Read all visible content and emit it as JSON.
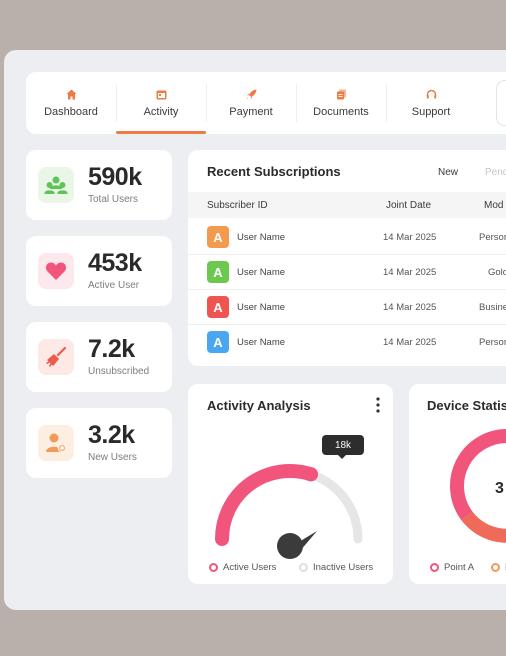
{
  "nav": {
    "tabs": [
      {
        "label": "Dashboard",
        "icon": "home-icon"
      },
      {
        "label": "Activity",
        "icon": "calendar-icon"
      },
      {
        "label": "Payment",
        "icon": "rocket-icon"
      },
      {
        "label": "Documents",
        "icon": "documents-icon"
      },
      {
        "label": "Support",
        "icon": "headset-icon"
      }
    ],
    "active_tab": "Activity",
    "notification_icon": "bell-icon"
  },
  "stats": [
    {
      "value": "590k",
      "label": "Total Users",
      "icon": "users-group-icon",
      "color": "#5fc35a",
      "bg": "#eaf6e6"
    },
    {
      "value": "453k",
      "label": "Active User",
      "icon": "heart-icon",
      "color": "#f2557c",
      "bg": "#fde8ee"
    },
    {
      "value": "7.2k",
      "label": "Unsubscribed",
      "icon": "broom-icon",
      "color": "#ef5a4c",
      "bg": "#fde9e6"
    },
    {
      "value": "3.2k",
      "label": "New Users",
      "icon": "add-user-icon",
      "color": "#f29a5c",
      "bg": "#fdeee2"
    }
  ],
  "subscriptions": {
    "title": "Recent Subscriptions",
    "filters": {
      "new": "New",
      "pending": "Pend"
    },
    "columns": {
      "id": "Subscriber ID",
      "date": "Joint Date",
      "mode": "Mod"
    },
    "rows": [
      {
        "avatar": "A",
        "color": "#f49a4c",
        "name": "User Name",
        "date": "14 Mar 2025",
        "mode": "Persor"
      },
      {
        "avatar": "A",
        "color": "#6cc84e",
        "name": "User Name",
        "date": "14 Mar 2025",
        "mode": "Gold"
      },
      {
        "avatar": "A",
        "color": "#ef5451",
        "name": "User Name",
        "date": "14 Mar 2025",
        "mode": "Busine"
      },
      {
        "avatar": "A",
        "color": "#4aa6ee",
        "name": "User Name",
        "date": "14 Mar 2025",
        "mode": "Persor"
      }
    ]
  },
  "activity": {
    "title": "Activity Analysis",
    "tooltip": "18k",
    "active_share": 0.6,
    "legend": {
      "active": "Active Users",
      "inactive": "Inactive Users"
    },
    "colors": {
      "active": "#f2557c",
      "inactive": "#e6e6e6"
    }
  },
  "device": {
    "title": "Device Statis",
    "center_value": "3",
    "legend": {
      "a": "Point A",
      "b": "P"
    },
    "colors": {
      "a": "#f2557c",
      "b": "#f29a5c"
    }
  }
}
